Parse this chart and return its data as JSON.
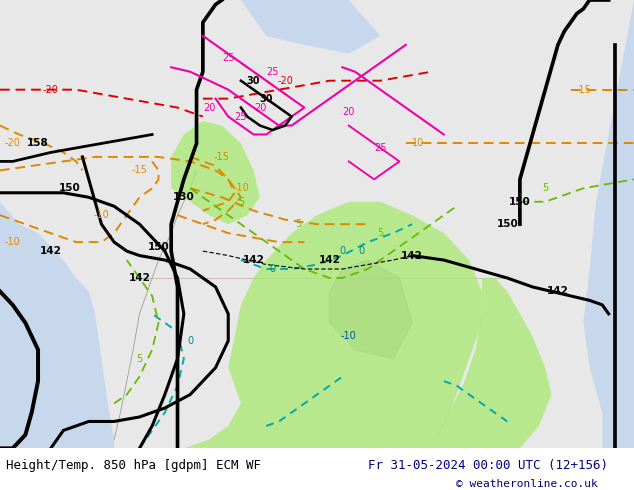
{
  "title_left": "Height/Temp. 850 hPa [gdpm] ECM WF",
  "title_right": "Fr 31-05-2024 00:00 UTC (12+156)",
  "copyright": "© weatheronline.co.uk",
  "bg_color": "#e8e8e8",
  "land_color": "#e0e0d8",
  "green_color": "#a8e870",
  "water_color": "#c8d8ec",
  "bottom_bar_color": "#ffffff",
  "text_color_left": "#000000",
  "text_color_right": "#000080",
  "copyright_color": "#000080",
  "font_size_bottom": 9.0,
  "black_contour_lw": 2.2,
  "orange_contour_lw": 1.4,
  "cyan_contour_lw": 1.4,
  "green_contour_lw": 1.3,
  "magenta_contour_lw": 1.5,
  "red_contour_lw": 1.4
}
